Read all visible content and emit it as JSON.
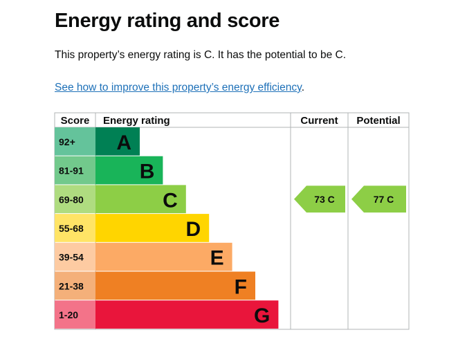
{
  "page": {
    "heading": "Energy rating and score",
    "summary": "This property’s energy rating is C. It has the potential to be C.",
    "link_text": "See how to improve this property’s energy efficiency",
    "link_suffix": "."
  },
  "chart_data": {
    "type": "bar",
    "columns": [
      "Score",
      "Energy rating",
      "Current",
      "Potential"
    ],
    "bands": [
      {
        "range": "92+",
        "letter": "A",
        "color": "#008054",
        "score_bg": "#64c39b"
      },
      {
        "range": "81-91",
        "letter": "B",
        "color": "#19b459",
        "score_bg": "#72c98c"
      },
      {
        "range": "69-80",
        "letter": "C",
        "color": "#8dce46",
        "score_bg": "#afdc80"
      },
      {
        "range": "55-68",
        "letter": "D",
        "color": "#ffd500",
        "score_bg": "#ffe466"
      },
      {
        "range": "39-54",
        "letter": "E",
        "color": "#fcaa65",
        "score_bg": "#fdcba2"
      },
      {
        "range": "21-38",
        "letter": "F",
        "color": "#ef8023",
        "score_bg": "#f4b07a"
      },
      {
        "range": "1-20",
        "letter": "G",
        "color": "#e9153b",
        "score_bg": "#f37389"
      }
    ],
    "current": {
      "value": 73,
      "letter": "C",
      "label": "73 C",
      "color": "#8dce46"
    },
    "potential": {
      "value": 77,
      "letter": "C",
      "label": "77 C",
      "color": "#8dce46"
    }
  },
  "colors": {
    "text": "#0b0c0c",
    "link": "#1d70b8",
    "grid": "#b1b4b6"
  }
}
